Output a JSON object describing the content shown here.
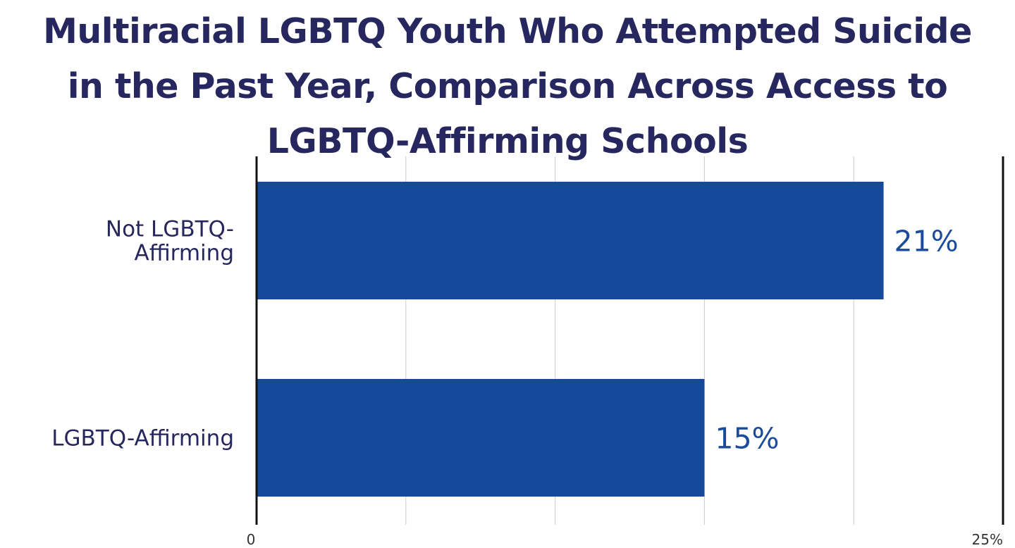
{
  "chart_data": {
    "type": "bar",
    "orientation": "horizontal",
    "title_lines": [
      "Multiracial LGBTQ Youth Who Attempted Suicide",
      "in the Past Year, Comparison Across Access to",
      "LGBTQ-Affirming Schools"
    ],
    "categories": [
      {
        "lines": [
          "Not LGBTQ-",
          "Affirming"
        ]
      },
      {
        "lines": [
          "LGBTQ-Affirming"
        ]
      }
    ],
    "values": [
      21,
      15
    ],
    "value_labels": [
      "21%",
      "15%"
    ],
    "xlim": [
      0,
      25
    ],
    "x_ticks": [
      {
        "value": 0,
        "label": "0"
      },
      {
        "value": 25,
        "label": "25%"
      }
    ],
    "gridlines": [
      5,
      10,
      15,
      20
    ],
    "grid": true,
    "xlabel": "",
    "ylabel": "",
    "colors": {
      "bar": "#154a9a",
      "title": "#25275e",
      "category_text": "#25275e",
      "value_text": "#1b4b9b",
      "grid": "#cccccc",
      "axis": "#111111"
    }
  }
}
